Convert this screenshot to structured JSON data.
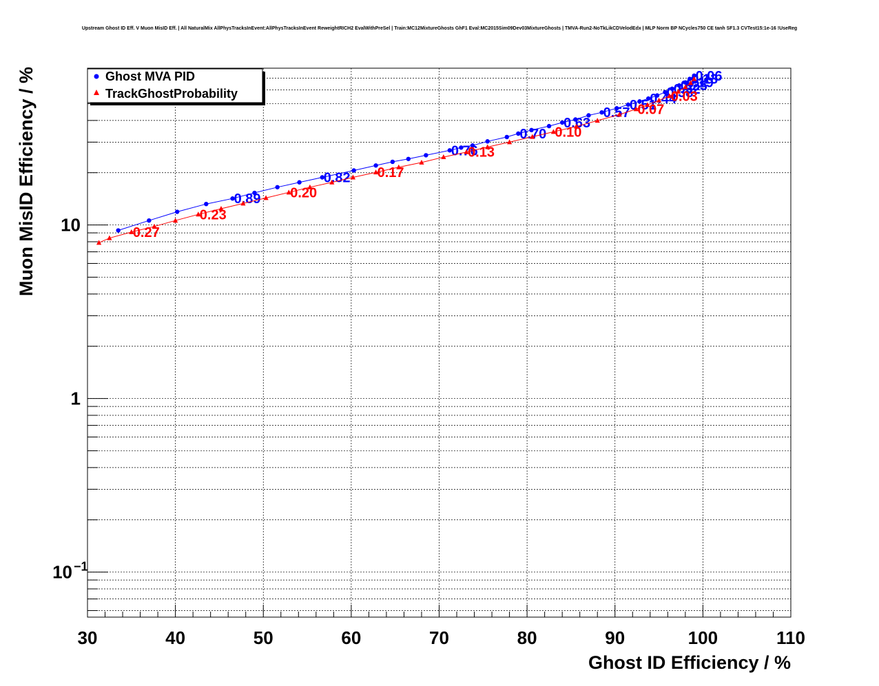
{
  "chart_data": {
    "type": "scatter",
    "title": "Upstream Ghost ID Eff. V Muon MisID Eff. | All NaturalMix AllPhysTracksInEvent:AllPhysTracksInEvent ReweightRICH2 EvalWithPreSel | Train:MC12MixtureGhosts GhF1 Eval:MC2015Sim09Dev03MixtureGhosts | TMVA-Run2-NoTkLikCDVelodEdx | MLP Norm BP NCycles750 CE tanh SF1.3 CVTest15:1e-16 !UseReg",
    "xlabel": "Ghost ID Efficiency / %",
    "ylabel": "Muon MisID Efficiency / %",
    "xlim": [
      30,
      110
    ],
    "ylim": [
      0.055,
      80
    ],
    "yscale": "log",
    "grid": true,
    "legend_position": "top-left",
    "x_ticks": [
      {
        "v": 30,
        "label": "30"
      },
      {
        "v": 40,
        "label": "40"
      },
      {
        "v": 50,
        "label": "50"
      },
      {
        "v": 60,
        "label": "60"
      },
      {
        "v": 70,
        "label": "70"
      },
      {
        "v": 80,
        "label": "80"
      },
      {
        "v": 90,
        "label": "90"
      },
      {
        "v": 100,
        "label": "100"
      },
      {
        "v": 110,
        "label": "110"
      }
    ],
    "y_ticks": [
      {
        "v": 0.1,
        "label": "10",
        "sup": "−1"
      },
      {
        "v": 1,
        "label": "1",
        "sup": ""
      },
      {
        "v": 10,
        "label": "10",
        "sup": ""
      }
    ],
    "series": [
      {
        "name": "Ghost MVA PID",
        "color": "#0000ff",
        "marker": "circle",
        "x": [
          33.5,
          37.0,
          40.2,
          43.5,
          46.5,
          49.0,
          51.6,
          54.1,
          56.7,
          60.3,
          62.8,
          64.7,
          66.5,
          68.5,
          71.2,
          72.5,
          73.8,
          75.5,
          77.7,
          79.0,
          80.5,
          82.5,
          84.0,
          85.5,
          87.0,
          88.5,
          90.2,
          91.5,
          92.8,
          93.8,
          94.8,
          95.7,
          96.5,
          97.3,
          98.0,
          98.5,
          99.0
        ],
        "y": [
          9.3,
          10.6,
          11.9,
          13.2,
          14.2,
          15.3,
          16.5,
          17.6,
          18.8,
          20.6,
          22.0,
          23.1,
          24.0,
          25.2,
          26.9,
          27.9,
          28.7,
          30.3,
          32.1,
          33.6,
          35.2,
          37.1,
          38.9,
          40.5,
          42.8,
          44.5,
          47.0,
          49.3,
          51.5,
          53.5,
          55.7,
          58.2,
          60.9,
          63.6,
          66.2,
          69.4,
          72.5
        ],
        "labels": [
          {
            "i": 4,
            "text": "0.89"
          },
          {
            "i": 8,
            "text": "0.82"
          },
          {
            "i": 14,
            "text": "0.76"
          },
          {
            "i": 19,
            "text": "0.70"
          },
          {
            "i": 22,
            "text": "0.63"
          },
          {
            "i": 25,
            "text": "0.57"
          },
          {
            "i": 27,
            "text": "0.51"
          },
          {
            "i": 29,
            "text": "0.44"
          },
          {
            "i": 31,
            "text": "0.38"
          },
          {
            "i": 32,
            "text": "0.32"
          },
          {
            "i": 33,
            "text": "0.25"
          },
          {
            "i": 34,
            "text": "0.19"
          },
          {
            "i": 35,
            "text": "0.13"
          },
          {
            "i": 36,
            "text": "0.06"
          }
        ]
      },
      {
        "name": "TrackGhostProbability",
        "color": "#ff0000",
        "marker": "triangle",
        "x": [
          31.3,
          32.5,
          35.0,
          37.6,
          40.0,
          42.6,
          45.2,
          47.7,
          50.3,
          52.9,
          55.3,
          57.8,
          60.2,
          62.8,
          65.4,
          68.0,
          70.5,
          73.1,
          75.5,
          78.0,
          80.6,
          83.0,
          85.6,
          88.0,
          90.5,
          92.4,
          93.7,
          95.0,
          96.2,
          97.2,
          98.0,
          98.6,
          99.0
        ],
        "y": [
          7.9,
          8.4,
          9.1,
          9.8,
          10.6,
          11.5,
          12.4,
          13.3,
          14.3,
          15.4,
          16.5,
          17.6,
          18.8,
          20.1,
          21.5,
          22.9,
          24.6,
          26.3,
          28.1,
          30.0,
          32.2,
          34.4,
          36.9,
          39.9,
          43.2,
          46.5,
          49.2,
          52.2,
          55.3,
          58.7,
          62.2,
          65.8,
          69.4
        ],
        "labels": [
          {
            "i": 2,
            "text": "0.27"
          },
          {
            "i": 5,
            "text": "0.23"
          },
          {
            "i": 9,
            "text": "0.20"
          },
          {
            "i": 13,
            "text": "0.17"
          },
          {
            "i": 17,
            "text": "0.13"
          },
          {
            "i": 21,
            "text": "0.10"
          },
          {
            "i": 25,
            "text": "0.07"
          },
          {
            "i": 28,
            "text": "0.03"
          }
        ]
      }
    ]
  }
}
